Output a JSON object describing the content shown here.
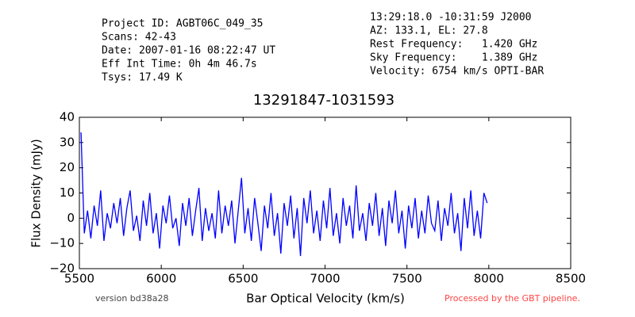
{
  "header": {
    "left": [
      "Project ID: AGBT06C_049_35",
      "Scans: 42-43",
      "Date: 2007-01-16 08:22:47 UT",
      "Eff Int Time: 0h 4m 46.7s",
      "Tsys: 17.49 K"
    ],
    "right": [
      "13:29:18.0 -10:31:59 J2000",
      "AZ: 133.1, EL: 27.8",
      "Rest Frequency:   1.420 GHz",
      "Sky Frequency:    1.389 GHz",
      "Velocity: 6754 km/s OPTI-BAR"
    ]
  },
  "chart_data": {
    "type": "line",
    "title": "13291847-1031593",
    "x_label": "Bar Optical Velocity (km/s)",
    "y_label": "Flux Density (mJy)",
    "color": "#0000ff",
    "x": [
      5510,
      5530,
      5550,
      5570,
      5590,
      5610,
      5630,
      5650,
      5670,
      5690,
      5710,
      5730,
      5750,
      5770,
      5790,
      5810,
      5830,
      5850,
      5870,
      5890,
      5910,
      5930,
      5950,
      5970,
      5990,
      6010,
      6030,
      6050,
      6070,
      6090,
      6110,
      6130,
      6150,
      6170,
      6190,
      6210,
      6230,
      6250,
      6270,
      6290,
      6310,
      6330,
      6350,
      6370,
      6390,
      6410,
      6430,
      6450,
      6470,
      6490,
      6510,
      6530,
      6550,
      6570,
      6590,
      6610,
      6630,
      6650,
      6670,
      6690,
      6710,
      6730,
      6750,
      6770,
      6790,
      6810,
      6830,
      6850,
      6870,
      6890,
      6910,
      6930,
      6950,
      6970,
      6990,
      7010,
      7030,
      7050,
      7070,
      7090,
      7110,
      7130,
      7150,
      7170,
      7190,
      7210,
      7230,
      7250,
      7270,
      7290,
      7310,
      7330,
      7350,
      7370,
      7390,
      7410,
      7430,
      7450,
      7470,
      7490,
      7510,
      7530,
      7550,
      7570,
      7590,
      7610,
      7630,
      7650,
      7670,
      7690,
      7710,
      7730,
      7750,
      7770,
      7790,
      7810,
      7830,
      7850,
      7870,
      7890,
      7910,
      7930,
      7950,
      7970,
      7990
    ],
    "values": [
      34,
      -6,
      3,
      -8,
      5,
      -3,
      11,
      -9,
      2,
      -4,
      6,
      -2,
      8,
      -7,
      4,
      11,
      -5,
      1,
      -9,
      7,
      -3,
      10,
      -6,
      2,
      -12,
      5,
      -2,
      9,
      -4,
      0,
      -11,
      6,
      -3,
      8,
      -7,
      3,
      12,
      -9,
      4,
      -5,
      2,
      -8,
      11,
      -6,
      5,
      -3,
      7,
      -10,
      3,
      16,
      -6,
      4,
      -9,
      8,
      -2,
      -13,
      5,
      -4,
      10,
      -7,
      2,
      -14,
      6,
      -3,
      9,
      -8,
      4,
      -15,
      8,
      -2,
      11,
      -6,
      3,
      -9,
      7,
      -4,
      12,
      -7,
      2,
      -10,
      8,
      -3,
      5,
      -8,
      13,
      -5,
      2,
      -9,
      6,
      -3,
      10,
      -7,
      4,
      -11,
      7,
      -2,
      11,
      -6,
      3,
      -12,
      5,
      -4,
      8,
      -8,
      3,
      -6,
      9,
      -2,
      -5,
      7,
      -9,
      4,
      -3,
      10,
      -6,
      2,
      -13,
      8,
      -4,
      11,
      -7,
      3,
      -8,
      10,
      6
    ],
    "xlim": [
      5500,
      8500
    ],
    "ylim": [
      -20,
      40
    ],
    "xticks": [
      5500,
      6000,
      6500,
      7000,
      7500,
      8000,
      8500
    ],
    "yticks": [
      {
        "value": -20,
        "label": "−20"
      },
      {
        "value": -10,
        "label": "−10"
      },
      0,
      10,
      20,
      30,
      40
    ]
  },
  "footer": {
    "version": "version bd38a28",
    "pipeline": "Processed by the GBT pipeline."
  }
}
